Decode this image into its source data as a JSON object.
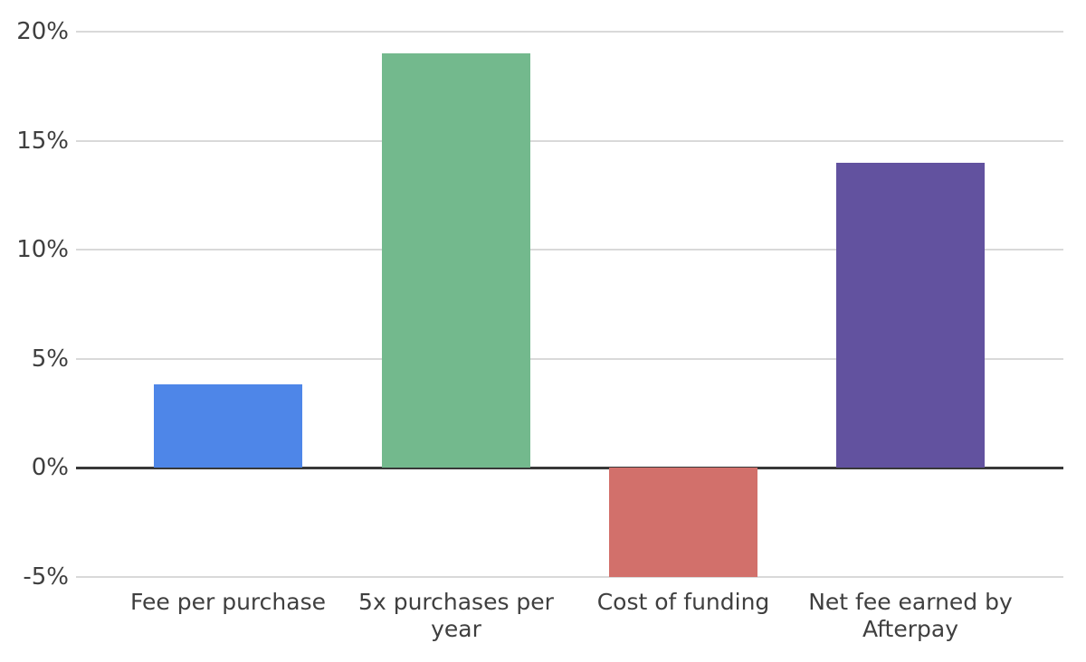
{
  "chart_data": {
    "type": "bar",
    "categories": [
      "Fee per purchase",
      "5x purchases per year",
      "Cost of funding",
      "Net fee earned by Afterpay"
    ],
    "values": [
      3.8,
      19,
      -5,
      14
    ],
    "bar_colors": [
      "#4e86e8",
      "#73b98d",
      "#d2706b",
      "#62529f"
    ],
    "title": "",
    "xlabel": "",
    "ylabel": "",
    "y_ticks": [
      20,
      15,
      10,
      5,
      0,
      -5
    ],
    "y_tick_labels": [
      "20%",
      "15%",
      "10%",
      "5%",
      "0%",
      "-5%"
    ],
    "ylim": [
      -7,
      20.5
    ],
    "grid": "horizontal-only",
    "legend": "none",
    "colors": {
      "gridline": "#d9d9d9",
      "zero_line": "#383838",
      "axis_text": "#3f3f3f",
      "background": "#ffffff"
    }
  }
}
